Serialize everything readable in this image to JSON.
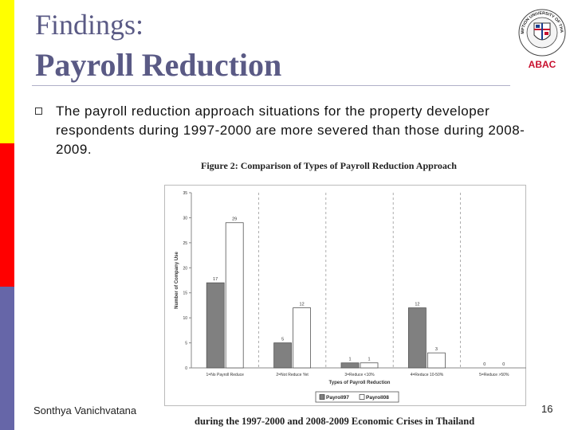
{
  "slide": {
    "title_line1": "Findings:",
    "title_line2": "Payroll Reduction",
    "bullet": "The payroll reduction approach situations for the property developer respondents during 1997-2000 are more severed than those during 2008-2009.",
    "author": "Sonthya Vanichvatana",
    "page_number": "16",
    "logo_text": "ABAC",
    "logo_ring_text": "ASSUMPTION UNIVERSITY OF THAILAND"
  },
  "colors": {
    "title": "#5a5a85",
    "bar_yellow": "#ffff00",
    "bar_red": "#ff0000",
    "bar_purple": "#6666a8",
    "payroll97": "#808080",
    "payroll08": "#ffffff",
    "logo_red": "#c8102e"
  },
  "chart_data": {
    "type": "bar",
    "title": "Figure 2: Comparison of Types of Payroll Reduction Approach",
    "subtitle": "during the 1997-2000 and 2008-2009 Economic Crises in Thailand",
    "xlabel": "Types of Payroll Reduction",
    "ylabel": "Number of Company Use",
    "ylim": [
      0,
      35
    ],
    "yticks": [
      0,
      5,
      10,
      15,
      20,
      25,
      30,
      35
    ],
    "categories": [
      "1=No Payroll Reduce",
      "2=Not Reduce Yet",
      "3=Reduce <10%",
      "4=Reduce 10-50%",
      "5=Reduce >50%"
    ],
    "series": [
      {
        "name": "Payroll97",
        "values": [
          17,
          5,
          1,
          12,
          0
        ]
      },
      {
        "name": "Payroll08",
        "values": [
          29,
          12,
          1,
          3,
          0
        ]
      }
    ],
    "grid": "vertical-dashed",
    "legend": "bottom"
  }
}
